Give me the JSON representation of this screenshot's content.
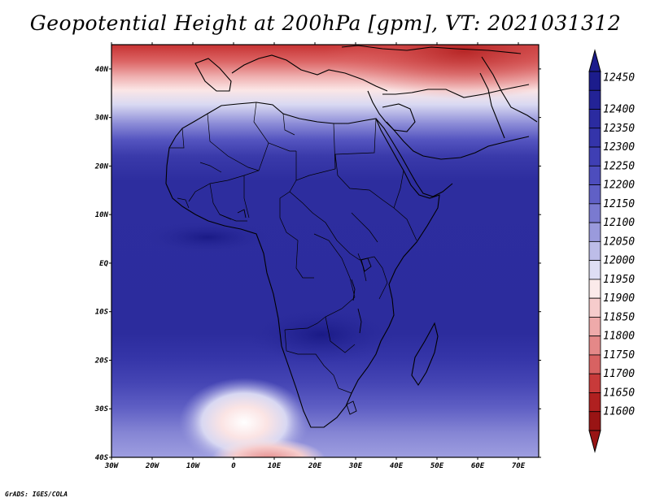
{
  "title": "Geopotential Height at 200hPa [gpm], VT: 2021031312",
  "credit": "GrADS: IGES/COLA",
  "map": {
    "variable": "Geopotential Height",
    "level": "200hPa",
    "units": "gpm",
    "valid_time": "2021031312",
    "lon_range": [
      -30,
      75
    ],
    "lat_range": [
      -40,
      45
    ],
    "lat_labels": [
      "40N",
      "30N",
      "20N",
      "10N",
      "EQ",
      "10S",
      "20S",
      "30S",
      "40S"
    ],
    "lon_labels": [
      "30W",
      "20W",
      "10W",
      "0",
      "10E",
      "20E",
      "30E",
      "40E",
      "50E",
      "60E",
      "70E"
    ]
  },
  "colorbar": {
    "labels": [
      "12450",
      "12400",
      "12350",
      "12300",
      "12250",
      "12200",
      "12150",
      "12100",
      "12050",
      "12000",
      "11950",
      "11900",
      "11850",
      "11800",
      "11750",
      "11700",
      "11650",
      "11600"
    ],
    "colors": [
      "#1c1c8c",
      "#232396",
      "#2b2ba0",
      "#3434aa",
      "#3f3fb4",
      "#4d4dbd",
      "#6060c6",
      "#7a7ad0",
      "#9a9adc",
      "#bdbde8",
      "#dedef4",
      "#fbeaea",
      "#f6cccc",
      "#eeaaaa",
      "#e48888",
      "#d86262",
      "#c83a3a",
      "#b02020",
      "#991414"
    ]
  }
}
